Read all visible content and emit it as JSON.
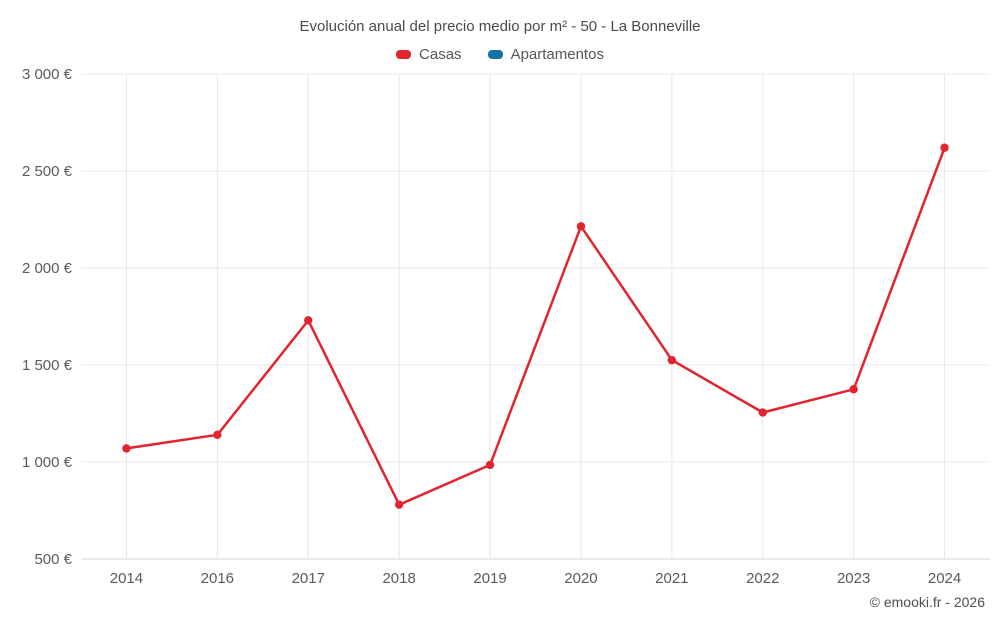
{
  "footer": {
    "credit": "© emooki.fr - 2026"
  },
  "chart_data": {
    "type": "line",
    "title": "Evolución anual del precio medio por m² - 50 - La Bonneville",
    "categories": [
      "2014",
      "2016",
      "2017",
      "2018",
      "2019",
      "2020",
      "2021",
      "2022",
      "2023",
      "2024"
    ],
    "series": [
      {
        "name": "Casas",
        "color": "#e2242f",
        "values": [
          1070,
          1140,
          1730,
          780,
          985,
          2215,
          1525,
          1255,
          1375,
          2620
        ]
      },
      {
        "name": "Apartamentos",
        "color": "#1374a4",
        "values": []
      }
    ],
    "xlabel": "",
    "ylabel": "",
    "ylim": [
      500,
      3000
    ],
    "ytick_step": 500,
    "ytick_labels": [
      "500 €",
      "1 000 €",
      "1 500 €",
      "2 000 €",
      "2 500 €",
      "3 000 €"
    ],
    "grid": true,
    "legend_position": "top",
    "colors": {
      "grid_line": "#e8e8e8",
      "axis_line": "#d6d6d6",
      "tick_text": "#5a5a5a"
    }
  }
}
